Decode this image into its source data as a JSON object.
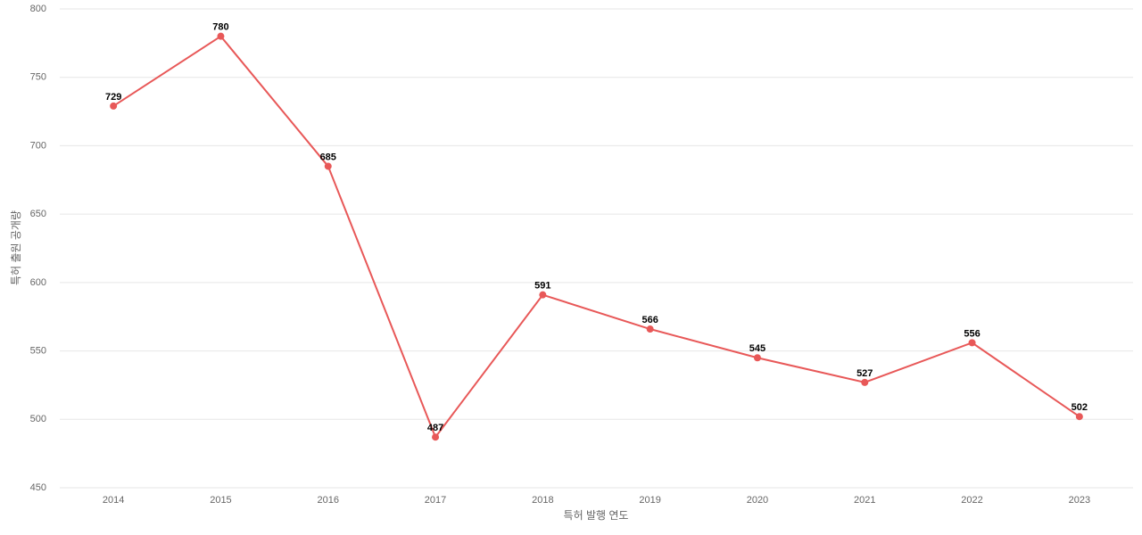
{
  "chart_data": {
    "type": "line",
    "x_label": "특허 발행 연도",
    "y_label": "특허 출원 공개량",
    "categories": [
      "2014",
      "2015",
      "2016",
      "2017",
      "2018",
      "2019",
      "2020",
      "2021",
      "2022",
      "2023"
    ],
    "series": [
      {
        "name": "특허 출원 공개량",
        "color": "#e85858",
        "values": [
          729,
          780,
          685,
          487,
          591,
          566,
          545,
          527,
          556,
          502
        ]
      }
    ],
    "ylim": [
      450,
      800
    ],
    "yticks": [
      450,
      500,
      550,
      600,
      650,
      700,
      750,
      800
    ],
    "grid": true
  }
}
